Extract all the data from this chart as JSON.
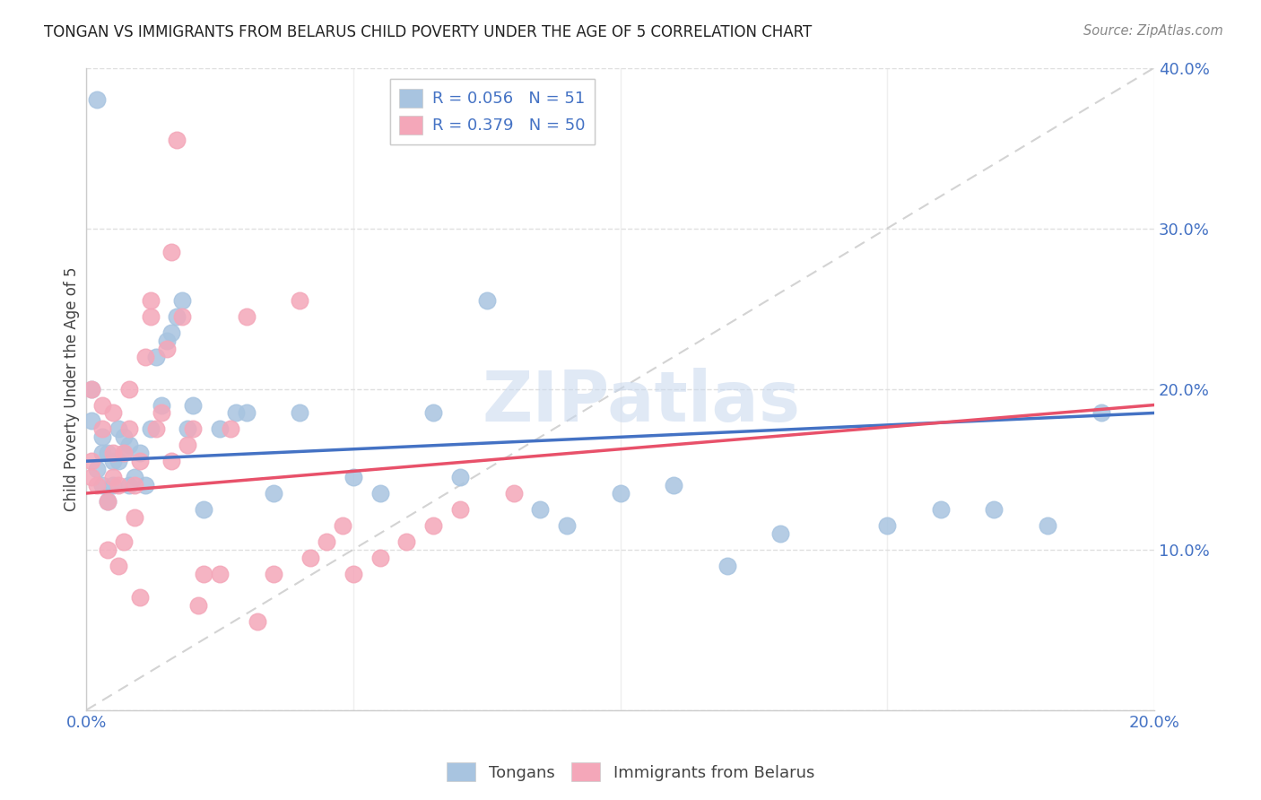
{
  "title": "TONGAN VS IMMIGRANTS FROM BELARUS CHILD POVERTY UNDER THE AGE OF 5 CORRELATION CHART",
  "source": "Source: ZipAtlas.com",
  "ylabel": "Child Poverty Under the Age of 5",
  "xlim": [
    0,
    0.2
  ],
  "ylim": [
    0,
    0.4
  ],
  "xticks": [
    0.0,
    0.05,
    0.1,
    0.15,
    0.2
  ],
  "yticks": [
    0.0,
    0.1,
    0.2,
    0.3,
    0.4
  ],
  "tongan_color": "#a8c4e0",
  "belarus_color": "#f4a7b9",
  "tongan_line_color": "#4472c4",
  "belarus_line_color": "#e8516a",
  "diag_line_color": "#c8c8c8",
  "legend_label_tongan": "Tongans",
  "legend_label_belarus": "Immigrants from Belarus",
  "watermark": "ZIPatlas",
  "background_color": "#ffffff",
  "grid_color": "#e0e0e0",
  "tongan_x": [
    0.001,
    0.002,
    0.002,
    0.003,
    0.003,
    0.004,
    0.004,
    0.005,
    0.005,
    0.006,
    0.006,
    0.007,
    0.008,
    0.008,
    0.009,
    0.01,
    0.011,
    0.012,
    0.013,
    0.014,
    0.015,
    0.016,
    0.017,
    0.018,
    0.019,
    0.02,
    0.022,
    0.025,
    0.028,
    0.03,
    0.035,
    0.04,
    0.05,
    0.055,
    0.065,
    0.07,
    0.075,
    0.085,
    0.09,
    0.1,
    0.11,
    0.12,
    0.13,
    0.15,
    0.16,
    0.17,
    0.18,
    0.19,
    0.001,
    0.003,
    0.007
  ],
  "tongan_y": [
    0.2,
    0.38,
    0.15,
    0.17,
    0.14,
    0.16,
    0.13,
    0.155,
    0.14,
    0.175,
    0.155,
    0.16,
    0.165,
    0.14,
    0.145,
    0.16,
    0.14,
    0.175,
    0.22,
    0.19,
    0.23,
    0.235,
    0.245,
    0.255,
    0.175,
    0.19,
    0.125,
    0.175,
    0.185,
    0.185,
    0.135,
    0.185,
    0.145,
    0.135,
    0.185,
    0.145,
    0.255,
    0.125,
    0.115,
    0.135,
    0.14,
    0.09,
    0.11,
    0.115,
    0.125,
    0.125,
    0.115,
    0.185,
    0.18,
    0.16,
    0.17
  ],
  "belarus_x": [
    0.001,
    0.001,
    0.002,
    0.003,
    0.003,
    0.004,
    0.004,
    0.005,
    0.005,
    0.005,
    0.006,
    0.006,
    0.007,
    0.007,
    0.008,
    0.008,
    0.009,
    0.009,
    0.01,
    0.01,
    0.011,
    0.012,
    0.012,
    0.013,
    0.014,
    0.015,
    0.016,
    0.016,
    0.017,
    0.018,
    0.019,
    0.02,
    0.021,
    0.022,
    0.025,
    0.027,
    0.03,
    0.032,
    0.035,
    0.04,
    0.042,
    0.045,
    0.048,
    0.05,
    0.055,
    0.06,
    0.065,
    0.07,
    0.08,
    0.001
  ],
  "belarus_y": [
    0.2,
    0.155,
    0.14,
    0.175,
    0.19,
    0.1,
    0.13,
    0.145,
    0.16,
    0.185,
    0.09,
    0.14,
    0.105,
    0.16,
    0.175,
    0.2,
    0.12,
    0.14,
    0.07,
    0.155,
    0.22,
    0.245,
    0.255,
    0.175,
    0.185,
    0.225,
    0.285,
    0.155,
    0.355,
    0.245,
    0.165,
    0.175,
    0.065,
    0.085,
    0.085,
    0.175,
    0.245,
    0.055,
    0.085,
    0.255,
    0.095,
    0.105,
    0.115,
    0.085,
    0.095,
    0.105,
    0.115,
    0.125,
    0.135,
    0.145
  ],
  "tongan_line_x": [
    0.0,
    0.2
  ],
  "tongan_line_y": [
    0.155,
    0.185
  ],
  "belarus_line_x": [
    0.0,
    0.2
  ],
  "belarus_line_y": [
    0.135,
    0.19
  ]
}
